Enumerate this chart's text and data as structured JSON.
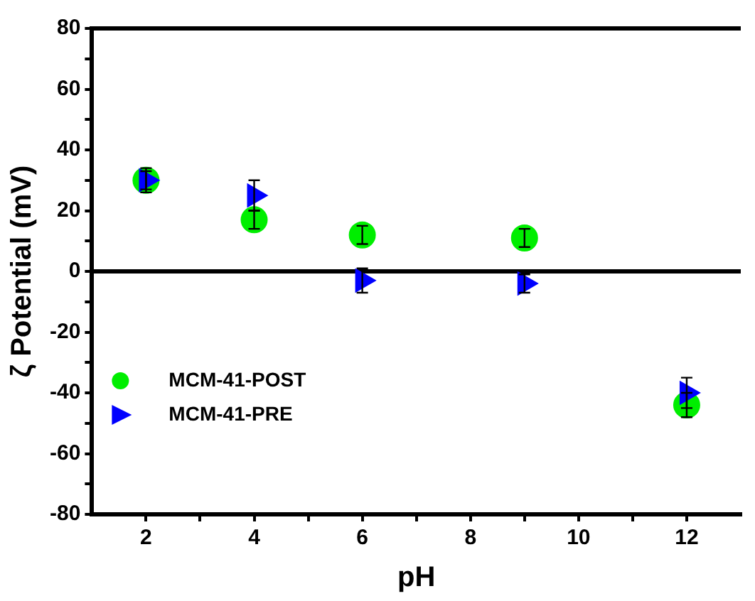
{
  "chart_data": {
    "type": "scatter",
    "xlabel": "pH",
    "ylabel": "ζ Potential (mV)",
    "x": [
      2,
      4,
      6,
      9,
      12
    ],
    "series": [
      {
        "name": "MCM-41-POST",
        "color": "#00ee00",
        "marker": "circle",
        "values": [
          30,
          17,
          12,
          11,
          -44
        ],
        "errors": [
          4,
          3,
          3,
          3,
          4
        ]
      },
      {
        "name": "MCM-41-PRE",
        "color": "#0000ff",
        "marker": "triangle",
        "values": [
          30,
          25,
          -3,
          -4,
          -40
        ],
        "errors": [
          3,
          5,
          4,
          3,
          5
        ]
      }
    ],
    "xlim": [
      1,
      13
    ],
    "xticks": [
      2,
      {
        "value": 3,
        "label": null
      },
      4,
      {
        "value": 5,
        "label": null
      },
      6,
      {
        "value": 7,
        "label": null
      },
      8,
      {
        "value": 9,
        "label": null
      },
      10,
      {
        "value": 11,
        "label": null
      },
      12
    ],
    "ylim": [
      -80,
      80
    ],
    "yticks": [
      -80,
      {
        "value": -70,
        "label": null
      },
      -60,
      {
        "value": -50,
        "label": null
      },
      -40,
      {
        "value": -30,
        "label": null
      },
      -20,
      {
        "value": -10,
        "label": null
      },
      0,
      {
        "value": 10,
        "label": null
      },
      20,
      {
        "value": 30,
        "label": null
      },
      40,
      {
        "value": 50,
        "label": null
      },
      60,
      {
        "value": 70,
        "label": null
      },
      80
    ],
    "ref_lines": [
      {
        "axis": "y",
        "value": 0,
        "color": "#000000"
      }
    ],
    "grid": false,
    "legend": "bottom left"
  }
}
